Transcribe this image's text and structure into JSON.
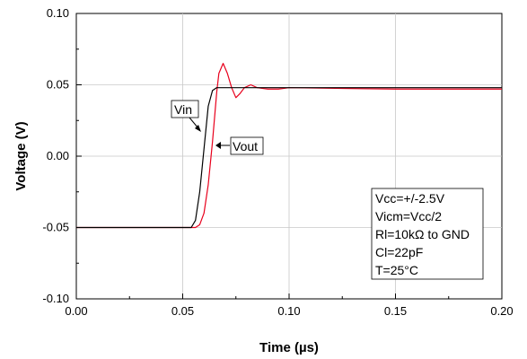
{
  "chart_data": {
    "type": "line",
    "title": "",
    "xlabel": "Time (µs)",
    "ylabel": "Voltage (V)",
    "xlim": [
      0.0,
      0.2
    ],
    "ylim": [
      -0.1,
      0.1
    ],
    "grid": true,
    "x_ticks": [
      "0.00",
      "0.05",
      "0.10",
      "0.15",
      "0.20"
    ],
    "y_ticks": [
      "-0.10",
      "-0.05",
      "0.00",
      "0.05",
      "0.10"
    ],
    "series": [
      {
        "name": "Vin",
        "color": "#000000",
        "x": [
          0.0,
          0.054,
          0.056,
          0.058,
          0.06,
          0.062,
          0.064,
          0.066,
          0.07,
          0.08,
          0.1,
          0.15,
          0.2
        ],
        "y": [
          -0.05,
          -0.05,
          -0.045,
          -0.025,
          0.005,
          0.035,
          0.046,
          0.048,
          0.048,
          0.048,
          0.048,
          0.048,
          0.048
        ]
      },
      {
        "name": "Vout",
        "color": "#e8001c",
        "x": [
          0.0,
          0.056,
          0.058,
          0.06,
          0.062,
          0.064,
          0.066,
          0.067,
          0.069,
          0.071,
          0.073,
          0.075,
          0.077,
          0.079,
          0.082,
          0.085,
          0.09,
          0.095,
          0.1,
          0.15,
          0.2
        ],
        "y": [
          -0.05,
          -0.05,
          -0.048,
          -0.04,
          -0.02,
          0.01,
          0.045,
          0.058,
          0.065,
          0.058,
          0.048,
          0.041,
          0.044,
          0.048,
          0.05,
          0.048,
          0.047,
          0.047,
          0.048,
          0.047,
          0.047
        ]
      }
    ],
    "annotations": {
      "vin_label": "Vin",
      "vout_label": "Vout",
      "conditions": [
        "Vcc=+/-2.5V",
        "Vicm=Vcc/2",
        "Rl=10kΩ to GND",
        "Cl=22pF",
        "T=25°C"
      ]
    }
  }
}
